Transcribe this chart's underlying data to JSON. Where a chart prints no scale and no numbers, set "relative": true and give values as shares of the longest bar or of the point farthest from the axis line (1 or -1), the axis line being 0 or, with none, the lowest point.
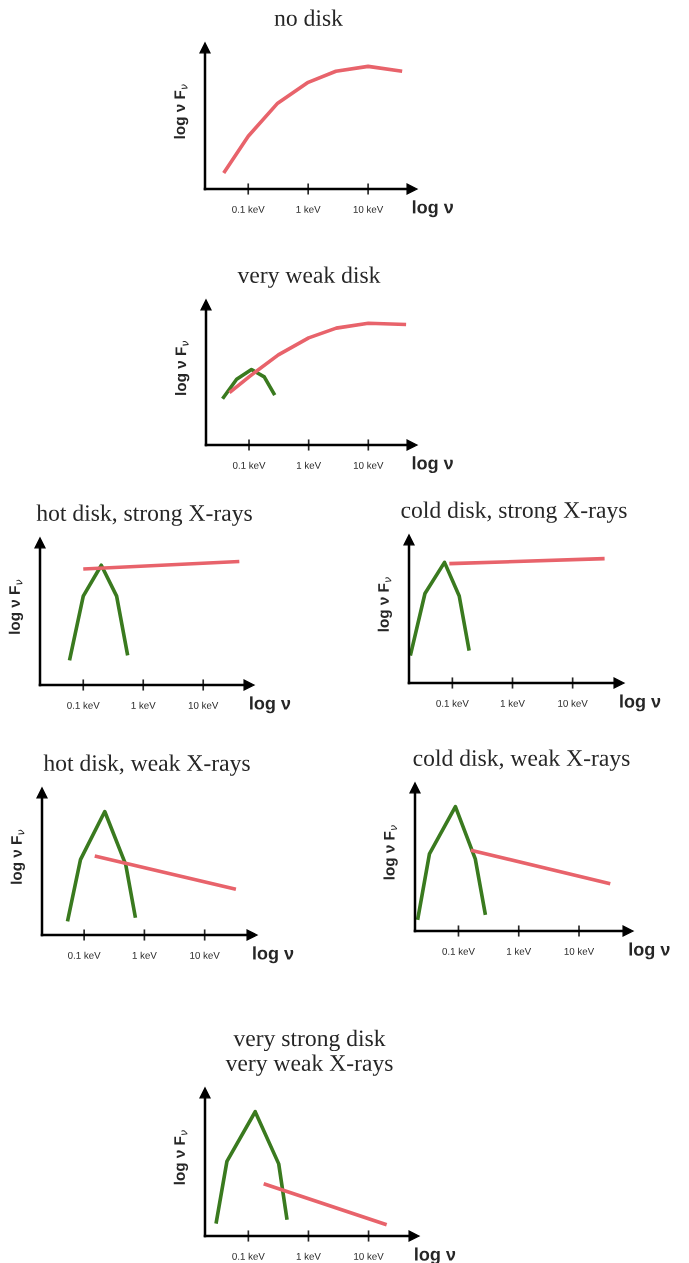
{
  "chart_data": [
    {
      "type": "line",
      "title": "no disk",
      "ylabel": "log ν F$_{ν}$",
      "xlabel": "log ν",
      "relative": true,
      "log": "x",
      "xlim": [
        0.019,
        54
      ],
      "xticks": [
        {
          "value": 0.1,
          "label": "0.1 keV"
        },
        {
          "value": 1,
          "label": "1 keV"
        },
        {
          "value": 10,
          "label": "10 keV"
        }
      ],
      "series": [
        {
          "color": "#e8636b",
          "x": [
            0.039,
            0.1,
            0.31,
            1,
            2.9,
            10,
            37
          ],
          "values": [
            0.13,
            0.43,
            0.7,
            0.87,
            0.96,
            1,
            0.96
          ]
        }
      ]
    },
    {
      "type": "line",
      "title": "very weak disk",
      "ylabel": "log ν F$_{ν}$",
      "xlabel": "log ν",
      "relative": true,
      "log": "x",
      "xlim": [
        0.019,
        54
      ],
      "xticks": [
        {
          "value": 0.1,
          "label": "0.1 keV"
        },
        {
          "value": 1,
          "label": "1 keV"
        },
        {
          "value": 10,
          "label": "10 keV"
        }
      ],
      "series": [
        {
          "color": "#3a7a1f",
          "x": [
            0.036,
            0.062,
            0.11,
            0.18,
            0.27
          ],
          "values": [
            0.38,
            0.54,
            0.62,
            0.56,
            0.41
          ]
        },
        {
          "color": "#e8636b",
          "x": [
            0.047,
            0.1,
            0.31,
            1,
            2.9,
            10,
            43
          ],
          "values": [
            0.43,
            0.56,
            0.74,
            0.88,
            0.96,
            1,
            0.99
          ]
        }
      ]
    },
    {
      "type": "line",
      "title": "hot disk, strong X-rays",
      "ylabel": "log ν F$_{ν}$",
      "xlabel": "log ν",
      "relative": true,
      "log": "x",
      "xlim": [
        0.019,
        58
      ],
      "xticks": [
        {
          "value": 0.1,
          "label": "0.1 keV"
        },
        {
          "value": 1,
          "label": "1 keV"
        },
        {
          "value": 10,
          "label": "10 keV"
        }
      ],
      "series": [
        {
          "color": "#3a7a1f",
          "x": [
            0.059,
            0.1,
            0.2,
            0.36,
            0.55
          ],
          "values": [
            0.2,
            0.72,
            0.97,
            0.72,
            0.24
          ]
        },
        {
          "color": "#e8636b",
          "x": [
            0.1,
            40
          ],
          "values": [
            0.94,
            1
          ]
        }
      ]
    },
    {
      "type": "line",
      "title": "cold disk, strong X-rays",
      "ylabel": "log ν F$_{ν}$",
      "xlabel": "log ν",
      "relative": true,
      "log": "x",
      "xlim": [
        0.019,
        59
      ],
      "xticks": [
        {
          "value": 0.1,
          "label": "0.1 keV"
        },
        {
          "value": 1,
          "label": "1 keV"
        },
        {
          "value": 10,
          "label": "10 keV"
        }
      ],
      "series": [
        {
          "color": "#3a7a1f",
          "x": [
            0.02,
            0.035,
            0.074,
            0.13,
            0.19
          ],
          "values": [
            0.22,
            0.72,
            0.97,
            0.7,
            0.26
          ]
        },
        {
          "color": "#e8636b",
          "x": [
            0.089,
            34
          ],
          "values": [
            0.96,
            1
          ]
        }
      ]
    },
    {
      "type": "line",
      "title": "hot disk, weak X-rays",
      "ylabel": "log ν F$_{ν}$",
      "xlabel": "log ν",
      "relative": true,
      "log": "x",
      "xlim": [
        0.02,
        61
      ],
      "xticks": [
        {
          "value": 0.1,
          "label": "0.1 keV"
        },
        {
          "value": 1,
          "label": "1 keV"
        },
        {
          "value": 10,
          "label": "10 keV"
        }
      ],
      "series": [
        {
          "color": "#3a7a1f",
          "x": [
            0.053,
            0.087,
            0.22,
            0.49,
            0.71
          ],
          "values": [
            0.11,
            0.61,
            1,
            0.57,
            0.14
          ]
        },
        {
          "color": "#e8636b",
          "x": [
            0.15,
            33
          ],
          "values": [
            0.64,
            0.37
          ]
        }
      ]
    },
    {
      "type": "line",
      "title": "cold disk, weak X-rays",
      "ylabel": "log ν F$_{ν}$",
      "xlabel": "log ν",
      "relative": true,
      "log": "x",
      "xlim": [
        0.019,
        65
      ],
      "xticks": [
        {
          "value": 0.1,
          "label": "0.1 keV"
        },
        {
          "value": 1,
          "label": "1 keV"
        },
        {
          "value": 10,
          "label": "10 keV"
        }
      ],
      "series": [
        {
          "color": "#3a7a1f",
          "x": [
            0.021,
            0.033,
            0.089,
            0.19,
            0.28
          ],
          "values": [
            0.09,
            0.62,
            1,
            0.58,
            0.13
          ]
        },
        {
          "color": "#e8636b",
          "x": [
            0.16,
            33
          ],
          "values": [
            0.65,
            0.38
          ]
        }
      ]
    },
    {
      "type": "line",
      "title": "very strong disk\nvery weak X-rays",
      "ylabel": "log ν F$_{ν}$",
      "xlabel": "log ν",
      "relative": true,
      "log": "x",
      "xlim": [
        0.019,
        57
      ],
      "xticks": [
        {
          "value": 0.1,
          "label": "0.1 keV"
        },
        {
          "value": 1,
          "label": "1 keV"
        },
        {
          "value": 10,
          "label": "10 keV"
        }
      ],
      "series": [
        {
          "color": "#3a7a1f",
          "x": [
            0.029,
            0.044,
            0.13,
            0.32,
            0.44
          ],
          "values": [
            0.1,
            0.6,
            1,
            0.58,
            0.13
          ]
        },
        {
          "color": "#e8636b",
          "x": [
            0.18,
            20
          ],
          "values": [
            0.42,
            0.09
          ]
        }
      ]
    }
  ]
}
